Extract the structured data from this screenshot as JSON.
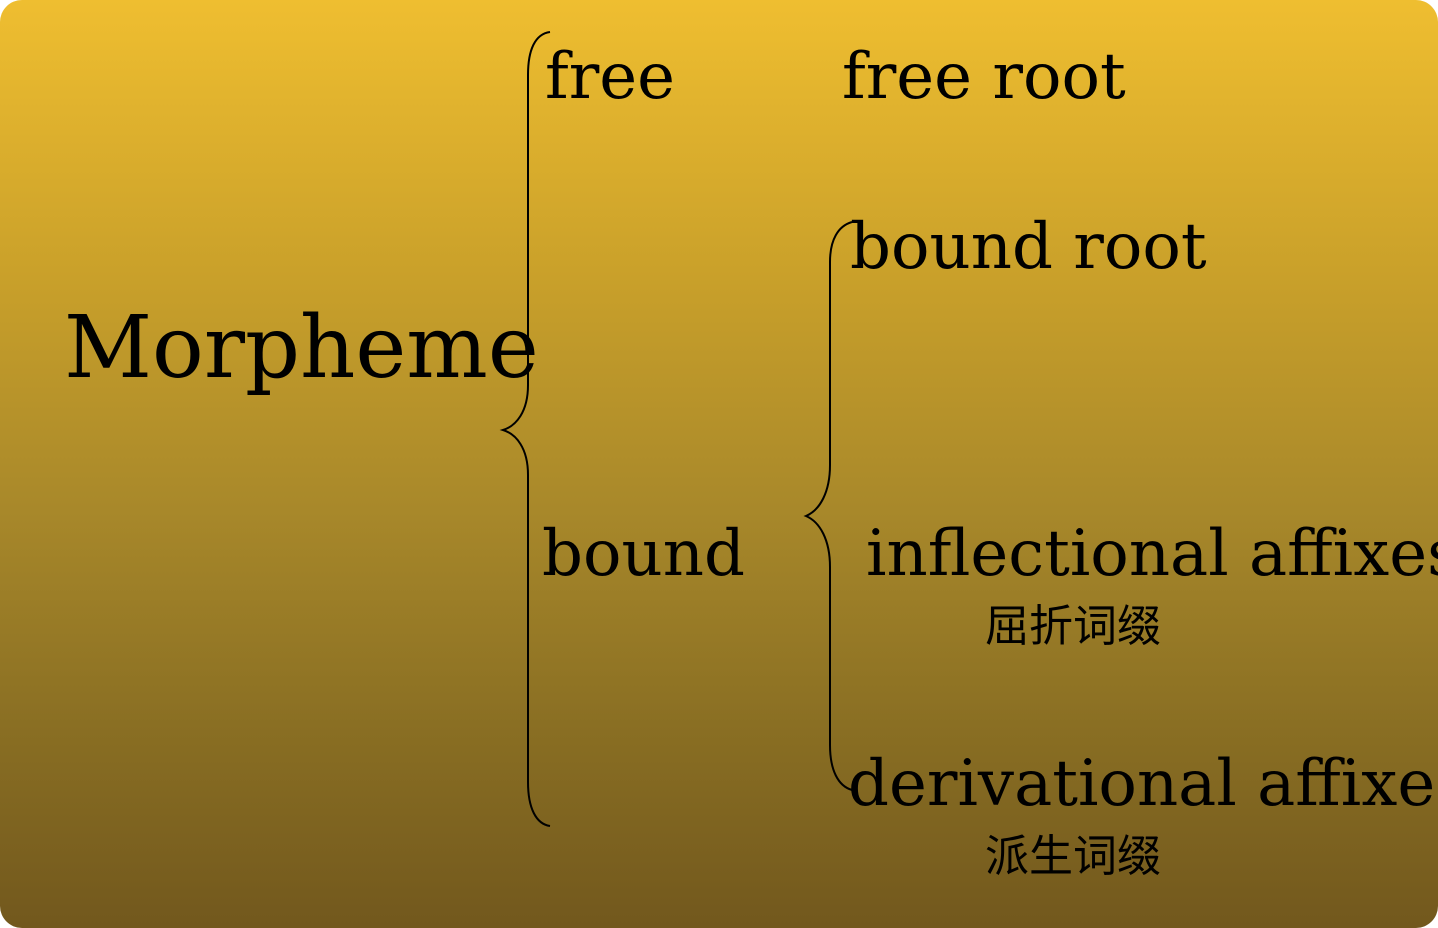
{
  "root": "Morpheme",
  "level1": {
    "free": "free",
    "bound": "bound"
  },
  "level2": {
    "free_root": "free root",
    "bound_root": "bound root",
    "inflectional": "inflectional affixes",
    "inflectional_cn": "屈折词缀",
    "derivational": "derivational affixes",
    "derivational_cn": "派生词缀"
  }
}
